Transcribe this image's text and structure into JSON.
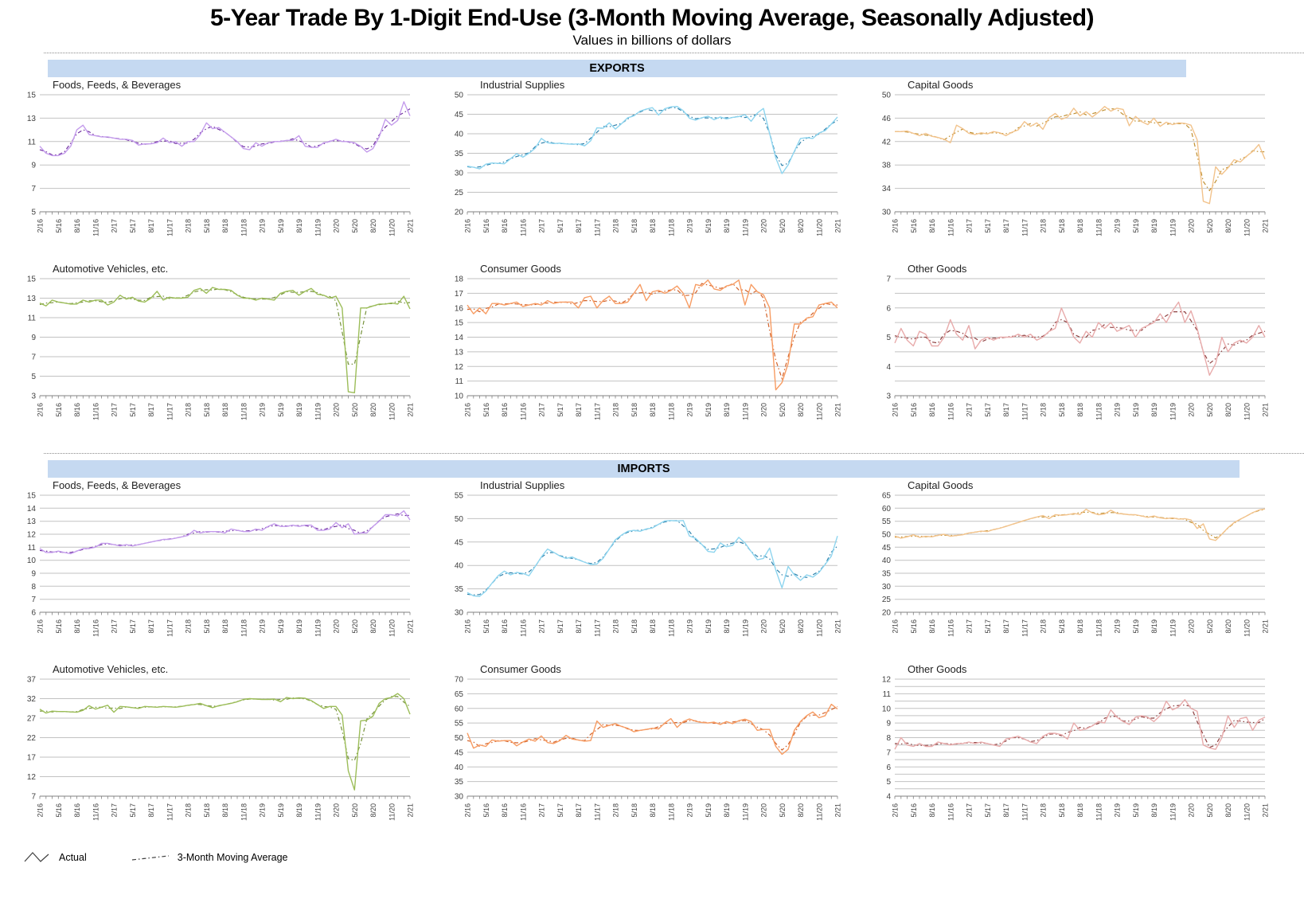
{
  "page": {
    "title": "5-Year Trade By 1-Digit End-Use (3-Month Moving Average, Seasonally Adjusted)",
    "subtitle": "Values in billions of dollars"
  },
  "sections": [
    {
      "label": "EXPORTS"
    },
    {
      "label": "IMPORTS"
    }
  ],
  "legend": {
    "actual_label": "Actual",
    "ma_label": "3-Month Moving Average",
    "icon_color": "#404040"
  },
  "chart_data": {
    "type": "line",
    "series_legend": [
      "Actual",
      "3-Month Moving Average"
    ],
    "x_tick_labels": [
      "2/16",
      "5/16",
      "8/16",
      "11/16",
      "2/17",
      "5/17",
      "8/17",
      "11/17",
      "2/18",
      "5/18",
      "8/18",
      "11/18",
      "2/19",
      "5/19",
      "8/19",
      "11/19",
      "2/20",
      "5/20",
      "8/20",
      "11/20",
      "2/21"
    ],
    "months_span": "monthly from 2/16 to 2/21 (61 points), x labels every 3rd month",
    "grid_color": "#c2c2c2",
    "axis_color": "#808080",
    "charts": [
      {
        "id": "exports-foods",
        "section": "exports",
        "title": "Foods, Feeds, & Beverages",
        "line_color": "#c49cec",
        "ma_color": "#7030a0",
        "ymin": 5,
        "ymax": 15,
        "grid_step": 2,
        "label_step": 2,
        "values": [
          10.6,
          10.0,
          9.8,
          9.8,
          10.0,
          10.6,
          12.0,
          12.4,
          11.6,
          11.5,
          11.4,
          11.4,
          11.3,
          11.2,
          11.2,
          11.1,
          10.7,
          10.8,
          10.8,
          10.9,
          11.3,
          10.9,
          11.0,
          10.6,
          11.0,
          11.0,
          11.6,
          12.6,
          12.1,
          12.2,
          11.8,
          11.4,
          11.0,
          10.4,
          10.3,
          10.9,
          10.6,
          10.9,
          11.0,
          11.0,
          11.1,
          11.1,
          11.5,
          10.6,
          10.5,
          10.5,
          10.9,
          11.0,
          11.2,
          11.0,
          11.0,
          10.9,
          10.6,
          10.1,
          10.4,
          11.4,
          12.9,
          12.4,
          12.8,
          14.4,
          13.2
        ]
      },
      {
        "id": "exports-industrial",
        "section": "exports",
        "title": "Industrial Supplies",
        "line_color": "#8ed5ef",
        "ma_color": "#2e81ab",
        "ymin": 20,
        "ymax": 50,
        "grid_step": 5,
        "label_step": 5,
        "values": [
          31.7,
          31.4,
          31.0,
          32.2,
          32.5,
          32.4,
          32.3,
          33.6,
          34.9,
          34.0,
          35.0,
          36.3,
          38.8,
          37.7,
          37.5,
          37.6,
          37.4,
          37.3,
          37.4,
          36.9,
          38.2,
          41.5,
          41.4,
          42.8,
          41.2,
          42.6,
          44.1,
          44.6,
          45.8,
          46.3,
          46.7,
          44.8,
          46.4,
          46.9,
          47.0,
          45.9,
          44.0,
          43.5,
          44.1,
          44.5,
          43.6,
          44.3,
          43.8,
          44.2,
          44.4,
          44.9,
          43.2,
          45.3,
          46.5,
          40.0,
          33.8,
          29.8,
          32.0,
          35.5,
          38.8,
          39.0,
          38.8,
          40.2,
          40.8,
          42.5,
          44.3
        ]
      },
      {
        "id": "exports-capital",
        "section": "exports",
        "title": "Capital Goods",
        "line_color": "#f2c38c",
        "ma_color": "#bf8f30",
        "ymin": 30,
        "ymax": 50,
        "grid_step": 4,
        "label_step": 4,
        "values": [
          43.7,
          43.7,
          43.8,
          43.4,
          43.0,
          43.4,
          42.9,
          42.7,
          42.4,
          41.8,
          44.8,
          44.2,
          43.4,
          43.2,
          43.5,
          43.3,
          43.7,
          43.5,
          43.0,
          43.6,
          44.0,
          45.4,
          44.6,
          45.2,
          44.1,
          46.1,
          46.8,
          45.8,
          46.2,
          47.7,
          46.4,
          47.1,
          46.2,
          47.0,
          48.0,
          47.2,
          47.7,
          47.5,
          44.7,
          46.3,
          45.4,
          44.9,
          46.0,
          44.6,
          45.3,
          44.9,
          45.2,
          45.1,
          44.8,
          42.3,
          31.8,
          31.4,
          37.7,
          36.4,
          37.5,
          38.9,
          38.5,
          39.5,
          40.3,
          41.5,
          39.0
        ]
      },
      {
        "id": "exports-auto",
        "section": "exports",
        "title": "Automotive Vehicles, etc.",
        "line_color": "#9cbd59",
        "ma_color": "#76923c",
        "ymin": 3,
        "ymax": 15,
        "grid_step": 2,
        "label_step": 2,
        "values": [
          12.5,
          12.2,
          12.8,
          12.6,
          12.5,
          12.4,
          12.4,
          12.8,
          12.6,
          12.8,
          12.8,
          12.3,
          12.6,
          13.3,
          12.9,
          13.1,
          12.7,
          12.6,
          13.0,
          13.7,
          12.8,
          13.1,
          13.0,
          13.0,
          13.1,
          13.8,
          14.0,
          13.5,
          14.1,
          13.9,
          13.9,
          13.8,
          13.3,
          13.0,
          13.0,
          12.8,
          13.0,
          12.9,
          12.8,
          13.5,
          13.7,
          13.8,
          13.3,
          13.7,
          14.0,
          13.4,
          13.3,
          13.0,
          13.2,
          12.0,
          3.4,
          3.3,
          12.0,
          12.0,
          12.2,
          12.4,
          12.4,
          12.5,
          12.4,
          13.2,
          11.9
        ]
      },
      {
        "id": "exports-consumer",
        "section": "exports",
        "title": "Consumer Goods",
        "line_color": "#f79c63",
        "ma_color": "#d2622a",
        "ymin": 10,
        "ymax": 18,
        "grid_step": 1,
        "label_step": 1,
        "values": [
          16.2,
          15.6,
          16.0,
          15.6,
          16.3,
          16.3,
          16.2,
          16.3,
          16.4,
          16.1,
          16.2,
          16.3,
          16.2,
          16.5,
          16.3,
          16.4,
          16.4,
          16.4,
          16.0,
          16.7,
          16.8,
          16.0,
          16.5,
          16.8,
          16.3,
          16.3,
          16.4,
          17.0,
          17.6,
          16.5,
          17.1,
          17.2,
          17.0,
          17.2,
          17.5,
          17.0,
          16.0,
          17.6,
          17.5,
          17.9,
          17.3,
          17.2,
          17.5,
          17.6,
          17.9,
          16.2,
          17.6,
          17.1,
          16.9,
          16.0,
          10.4,
          10.9,
          12.2,
          14.9,
          14.9,
          15.3,
          15.4,
          16.2,
          16.3,
          16.4,
          16.0
        ]
      },
      {
        "id": "exports-other",
        "section": "exports",
        "title": "Other Goods",
        "line_color": "#e8abab",
        "ma_color": "#8e4040",
        "ymin": 3,
        "ymax": 7,
        "grid_step": 0.5,
        "label_step": 1,
        "values": [
          4.8,
          5.3,
          4.9,
          4.7,
          5.2,
          5.1,
          4.7,
          4.7,
          5.0,
          5.6,
          5.1,
          4.9,
          5.4,
          4.6,
          4.9,
          5.0,
          4.9,
          5.0,
          5.0,
          5.0,
          5.1,
          5.0,
          5.1,
          4.9,
          5.0,
          5.2,
          5.3,
          6.0,
          5.5,
          5.0,
          4.8,
          5.2,
          5.0,
          5.5,
          5.3,
          5.5,
          5.2,
          5.3,
          5.4,
          5.0,
          5.3,
          5.4,
          5.5,
          5.8,
          5.5,
          5.9,
          6.2,
          5.5,
          5.9,
          5.3,
          4.5,
          3.7,
          4.1,
          5.0,
          4.5,
          4.8,
          4.9,
          4.8,
          5.0,
          5.4,
          5.0
        ]
      },
      {
        "id": "imports-foods",
        "section": "imports",
        "title": "Foods, Feeds, & Beverages",
        "line_color": "#c49cec",
        "ma_color": "#7030a0",
        "ymin": 6,
        "ymax": 15,
        "grid_step": 1,
        "label_step": 1,
        "values": [
          10.9,
          10.6,
          10.6,
          10.7,
          10.6,
          10.5,
          10.7,
          10.9,
          10.9,
          11.0,
          11.3,
          11.3,
          11.2,
          11.1,
          11.2,
          11.1,
          11.2,
          11.3,
          11.4,
          11.5,
          11.6,
          11.6,
          11.7,
          11.8,
          11.9,
          12.3,
          12.1,
          12.2,
          12.2,
          12.2,
          12.1,
          12.4,
          12.3,
          12.2,
          12.2,
          12.4,
          12.3,
          12.6,
          12.8,
          12.6,
          12.6,
          12.7,
          12.6,
          12.7,
          12.7,
          12.3,
          12.3,
          12.4,
          12.9,
          12.5,
          12.8,
          12.0,
          12.1,
          12.1,
          12.6,
          13.0,
          13.5,
          13.5,
          13.4,
          13.8,
          13.1
        ]
      },
      {
        "id": "imports-industrial",
        "section": "imports",
        "title": "Industrial Supplies",
        "line_color": "#8ed5ef",
        "ma_color": "#2e81ab",
        "ymin": 30,
        "ymax": 55,
        "grid_step": 5,
        "label_step": 5,
        "values": [
          34.2,
          33.5,
          33.4,
          34.5,
          36.2,
          37.8,
          38.8,
          38.0,
          38.5,
          38.3,
          37.8,
          39.8,
          41.8,
          43.5,
          42.8,
          42.0,
          41.5,
          41.8,
          41.2,
          40.7,
          40.2,
          40.3,
          41.5,
          43.5,
          45.5,
          46.5,
          47.3,
          47.5,
          47.3,
          47.8,
          48.0,
          48.8,
          49.5,
          49.6,
          49.5,
          49.6,
          46.3,
          45.8,
          44.5,
          43.0,
          42.8,
          44.8,
          44.0,
          44.3,
          46.0,
          44.8,
          43.0,
          41.2,
          41.5,
          43.7,
          39.0,
          35.2,
          39.8,
          38.0,
          36.8,
          38.0,
          37.5,
          38.5,
          40.2,
          42.0,
          46.3
        ]
      },
      {
        "id": "imports-capital",
        "section": "imports",
        "title": "Capital Goods",
        "line_color": "#f2c38c",
        "ma_color": "#bf8f30",
        "ymin": 20,
        "ymax": 65,
        "grid_step": 5,
        "label_step": 5,
        "values": [
          49.3,
          48.5,
          49.0,
          49.8,
          48.8,
          49.2,
          49.0,
          49.6,
          50.0,
          49.2,
          49.5,
          49.8,
          50.5,
          50.8,
          51.2,
          51.0,
          51.8,
          52.3,
          53.0,
          53.8,
          54.5,
          55.3,
          56.0,
          56.6,
          57.2,
          56.0,
          57.5,
          57.3,
          57.5,
          58.0,
          57.6,
          59.6,
          58.2,
          57.5,
          57.8,
          59.2,
          58.0,
          57.8,
          57.5,
          57.5,
          57.0,
          56.5,
          57.0,
          56.3,
          56.0,
          56.3,
          55.8,
          56.0,
          55.5,
          52.2,
          54.0,
          48.2,
          47.6,
          50.0,
          52.5,
          54.5,
          55.8,
          57.0,
          58.3,
          59.3,
          59.7
        ]
      },
      {
        "id": "imports-auto",
        "section": "imports",
        "title": "Automotive Vehicles, etc.",
        "line_color": "#9cbd59",
        "ma_color": "#76923c",
        "ymin": 7,
        "ymax": 37,
        "grid_step": 5,
        "label_step": 5,
        "values": [
          29.3,
          28.3,
          28.8,
          28.7,
          28.7,
          28.6,
          28.5,
          29.0,
          30.2,
          29.3,
          29.8,
          30.3,
          28.5,
          30.0,
          29.9,
          29.7,
          29.5,
          30.0,
          29.9,
          29.8,
          30.0,
          29.9,
          29.8,
          30.0,
          30.3,
          30.5,
          30.8,
          30.2,
          29.7,
          30.2,
          30.5,
          30.8,
          31.2,
          31.8,
          32.0,
          31.9,
          31.8,
          31.8,
          31.9,
          31.2,
          32.3,
          32.0,
          32.2,
          32.1,
          31.5,
          30.5,
          29.5,
          30.0,
          30.0,
          27.8,
          13.5,
          8.6,
          26.3,
          26.5,
          27.5,
          30.8,
          32.0,
          32.3,
          33.3,
          32.0,
          28.0
        ]
      },
      {
        "id": "imports-consumer",
        "section": "imports",
        "title": "Consumer Goods",
        "line_color": "#f79c63",
        "ma_color": "#d2622a",
        "ymin": 30,
        "ymax": 70,
        "grid_step": 5,
        "label_step": 5,
        "values": [
          51.6,
          46.4,
          47.5,
          47.0,
          49.2,
          48.8,
          49.0,
          49.0,
          47.2,
          48.5,
          49.5,
          48.8,
          50.6,
          48.3,
          48.0,
          49.0,
          50.8,
          49.5,
          49.2,
          48.8,
          49.0,
          55.7,
          53.5,
          54.2,
          54.8,
          53.8,
          53.2,
          52.0,
          52.5,
          52.8,
          53.2,
          53.0,
          55.0,
          56.5,
          53.5,
          55.5,
          56.4,
          55.6,
          55.2,
          55.0,
          55.3,
          54.5,
          55.5,
          54.8,
          55.8,
          56.3,
          55.5,
          52.5,
          52.8,
          52.8,
          47.0,
          44.3,
          46.0,
          52.5,
          55.5,
          57.5,
          58.8,
          56.8,
          57.5,
          61.4,
          59.8
        ]
      },
      {
        "id": "imports-other",
        "section": "imports",
        "title": "Other Goods",
        "line_color": "#e8abab",
        "ma_color": "#8e4040",
        "ymin": 4,
        "ymax": 12,
        "grid_step": 0.5,
        "label_step": 1,
        "values": [
          7.2,
          8.0,
          7.5,
          7.4,
          7.6,
          7.4,
          7.4,
          7.7,
          7.6,
          7.5,
          7.6,
          7.6,
          7.7,
          7.6,
          7.7,
          7.6,
          7.5,
          7.4,
          7.9,
          8.0,
          8.1,
          7.9,
          7.7,
          7.6,
          8.1,
          8.3,
          8.3,
          8.2,
          7.9,
          9.0,
          8.5,
          8.6,
          8.8,
          9.1,
          9.0,
          9.9,
          9.4,
          9.1,
          8.9,
          9.4,
          9.5,
          9.4,
          9.1,
          9.5,
          10.5,
          9.9,
          10.1,
          10.6,
          10.0,
          9.8,
          7.5,
          7.3,
          7.2,
          8.0,
          9.5,
          8.7,
          9.3,
          9.4,
          8.5,
          9.2,
          9.4
        ]
      }
    ]
  }
}
